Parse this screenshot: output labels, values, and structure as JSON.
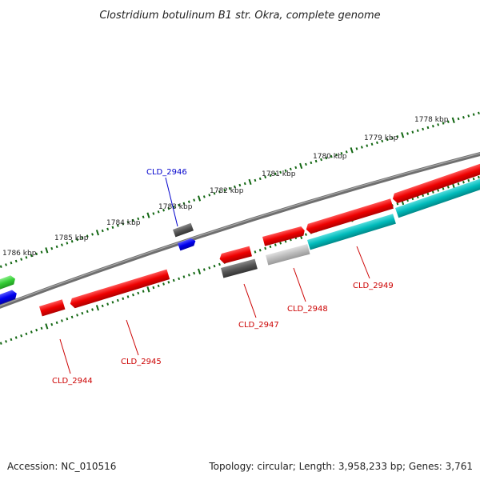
{
  "title": "Clostridium botulinum B1 str. Okra, complete genome",
  "footer": {
    "accession": "Accession: NC_010516",
    "summary": "Topology: circular; Length: 3,958,233 bp; Genes: 3,761"
  },
  "ruler_labels": [
    "1786 kbp",
    "1785 kbp",
    "1784 kbp",
    "1783 kbp",
    "1782 kbp",
    "1781 kbp",
    "1780 kbp",
    "1779 kbp",
    "1778 kbp"
  ],
  "gene_labels": [
    {
      "text": "CLD_2946",
      "color": "#0000cc"
    },
    {
      "text": "CLD_2944",
      "color": "#cc0000"
    },
    {
      "text": "CLD_2945",
      "color": "#cc0000"
    },
    {
      "text": "CLD_2947",
      "color": "#cc0000"
    },
    {
      "text": "CLD_2948",
      "color": "#cc0000"
    },
    {
      "text": "CLD_2949",
      "color": "#cc0000"
    }
  ],
  "colors": {
    "forward_red": "#ee0000",
    "cds_blue": "#0000ee",
    "cds_green": "#33cc33",
    "cds_cyan": "#00bbbb",
    "cds_dark_gray": "#555555",
    "cds_light_gray": "#bbbbbb",
    "backbone": "#777777",
    "tick": "#116611"
  }
}
